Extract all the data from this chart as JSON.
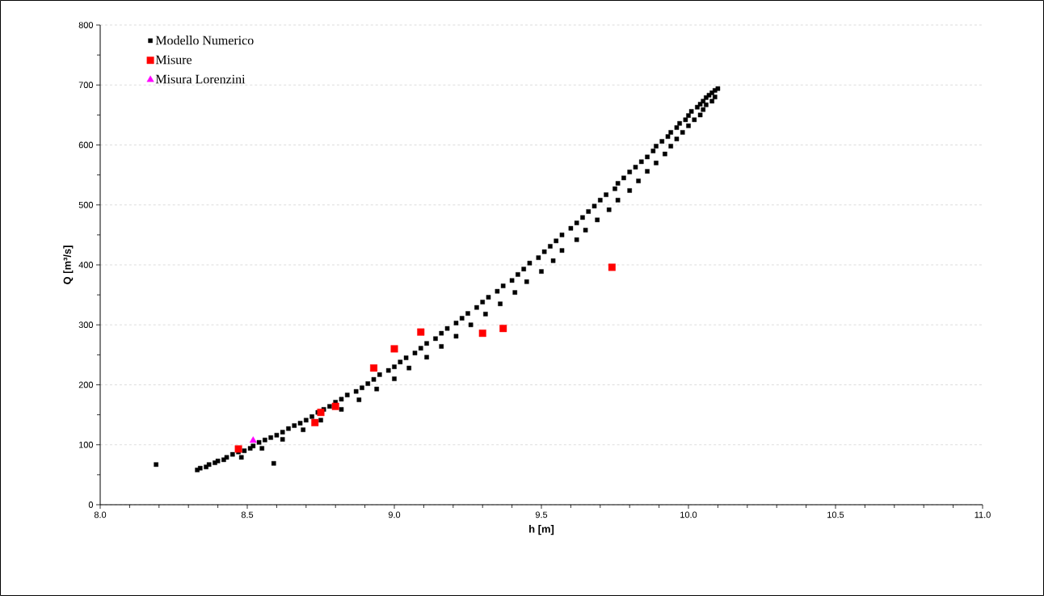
{
  "chart_data": {
    "type": "scatter",
    "xlabel": "h [m]",
    "ylabel": "Q [m³/s]",
    "xlim": [
      8,
      11
    ],
    "ylim": [
      0,
      800
    ],
    "xticks": [
      {
        "value": 8,
        "label": "8.0"
      },
      {
        "value": 8.5,
        "label": "8.5"
      },
      {
        "value": 9,
        "label": "9.0"
      },
      {
        "value": 9.5,
        "label": "9.5"
      },
      {
        "value": 10,
        "label": "10.0"
      },
      {
        "value": 10.5,
        "label": "10.5"
      },
      {
        "value": 11,
        "label": "11.0"
      }
    ],
    "yticks": [
      0,
      100,
      200,
      300,
      400,
      500,
      600,
      700,
      800
    ],
    "grid": "y",
    "legend": "top left",
    "series": [
      {
        "name": "Modello Numerico",
        "color": "#000000",
        "marker": "square",
        "x": [
          8.33,
          8.34,
          8.36,
          8.37,
          8.39,
          8.4,
          8.42,
          8.43,
          8.45,
          8.47,
          8.49,
          8.51,
          8.52,
          8.54,
          8.56,
          8.58,
          8.6,
          8.62,
          8.64,
          8.66,
          8.68,
          8.7,
          8.72,
          8.74,
          8.76,
          8.78,
          8.8,
          8.82,
          8.84,
          8.87,
          8.89,
          8.91,
          8.93,
          8.95,
          8.98,
          9.0,
          9.02,
          9.04,
          9.07,
          9.09,
          9.11,
          9.14,
          9.16,
          9.18,
          9.21,
          9.23,
          9.25,
          9.28,
          9.3,
          9.32,
          9.35,
          9.37,
          9.4,
          9.42,
          9.44,
          9.46,
          9.49,
          9.51,
          9.53,
          9.55,
          9.57,
          9.6,
          9.62,
          9.64,
          9.66,
          9.68,
          9.7,
          9.72,
          9.75,
          9.76,
          9.78,
          9.8,
          9.82,
          9.84,
          9.86,
          9.88,
          9.89,
          9.91,
          9.93,
          9.94,
          9.96,
          9.97,
          9.99,
          10.0,
          10.01,
          10.03,
          10.04,
          10.05,
          10.06,
          10.07,
          10.08,
          10.09,
          10.1,
          8.19,
          8.59,
          8.48,
          8.55,
          8.62,
          8.69,
          8.75,
          8.82,
          8.88,
          8.94,
          9.0,
          9.05,
          9.11,
          9.16,
          9.21,
          9.26,
          9.31,
          9.36,
          9.41,
          9.45,
          9.5,
          9.54,
          9.57,
          9.62,
          9.65,
          9.69,
          9.73,
          9.76,
          9.8,
          9.83,
          9.86,
          9.89,
          9.92,
          9.94,
          9.96,
          9.98,
          10.0,
          10.02,
          10.04,
          10.05,
          10.06,
          10.08,
          10.09
        ],
        "values": [
          58,
          61,
          63,
          67,
          70,
          73,
          75,
          79,
          84,
          88,
          90,
          94,
          98,
          104,
          108,
          112,
          116,
          121,
          127,
          132,
          136,
          141,
          147,
          154,
          159,
          164,
          171,
          176,
          183,
          189,
          195,
          202,
          209,
          217,
          224,
          230,
          238,
          245,
          253,
          261,
          269,
          277,
          286,
          294,
          303,
          311,
          319,
          329,
          338,
          346,
          356,
          365,
          374,
          384,
          393,
          403,
          412,
          422,
          431,
          440,
          450,
          461,
          470,
          479,
          489,
          498,
          508,
          517,
          527,
          536,
          545,
          555,
          563,
          572,
          580,
          590,
          598,
          606,
          614,
          621,
          629,
          636,
          642,
          649,
          656,
          663,
          668,
          673,
          679,
          683,
          687,
          691,
          694,
          67,
          69,
          79,
          94,
          109,
          125,
          141,
          159,
          175,
          193,
          210,
          228,
          246,
          264,
          281,
          300,
          318,
          335,
          354,
          372,
          389,
          407,
          424,
          442,
          458,
          475,
          492,
          508,
          524,
          540,
          556,
          570,
          585,
          598,
          610,
          621,
          632,
          642,
          650,
          659,
          667,
          673,
          680
        ]
      },
      {
        "name": "Misure",
        "color": "#ff0000",
        "marker": "square",
        "x": [
          8.47,
          8.73,
          8.75,
          8.8,
          8.93,
          9.0,
          9.09,
          9.3,
          9.37,
          9.74
        ],
        "values": [
          93,
          137,
          154,
          164,
          228,
          260,
          288,
          286,
          294,
          396
        ]
      },
      {
        "name": "Misura Lorenzini",
        "color": "#ff00ff",
        "marker": "triangle",
        "x": [
          8.52
        ],
        "values": [
          107
        ]
      }
    ]
  }
}
